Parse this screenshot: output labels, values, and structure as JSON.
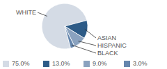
{
  "chart_data": {
    "type": "pie",
    "categories": [
      "WHITE",
      "ASIAN",
      "HISPANIC",
      "BLACK"
    ],
    "values": [
      75,
      13,
      9,
      3
    ],
    "value_labels": [
      "75.0%",
      "13.0%",
      "9.0%",
      "3.0%"
    ],
    "colors": [
      "#d4dbe5",
      "#2d5b87",
      "#8aa2bf",
      "#6586ad"
    ]
  }
}
